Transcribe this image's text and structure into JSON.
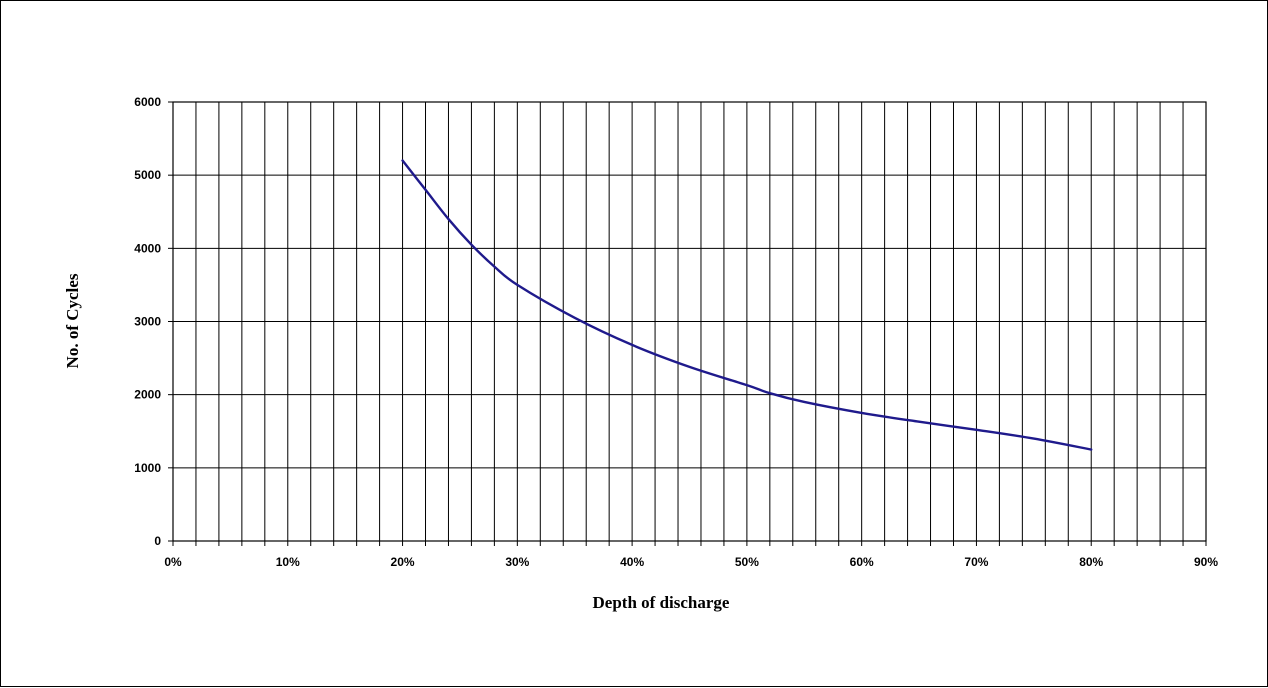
{
  "chart_data": {
    "type": "line",
    "title": "",
    "xlabel": "Depth of discharge",
    "ylabel": "No. of Cycles",
    "xlim": [
      0,
      90
    ],
    "ylim": [
      0,
      6000
    ],
    "x_tick_labels": [
      "0%",
      "10%",
      "20%",
      "30%",
      "40%",
      "50%",
      "60%",
      "70%",
      "80%",
      "90%"
    ],
    "y_tick_labels": [
      "0",
      "1000",
      "2000",
      "3000",
      "4000",
      "5000",
      "6000"
    ],
    "grid": true,
    "legend": "none",
    "series": [
      {
        "color": "#1f1a8c",
        "x": [
          20,
          22,
          24,
          26,
          28,
          30,
          35,
          40,
          45,
          50,
          52,
          55,
          60,
          65,
          70,
          75,
          80
        ],
        "y": [
          5200,
          4800,
          4400,
          4050,
          3750,
          3500,
          3050,
          2680,
          2380,
          2130,
          2020,
          1900,
          1750,
          1630,
          1520,
          1400,
          1250
        ]
      }
    ]
  }
}
